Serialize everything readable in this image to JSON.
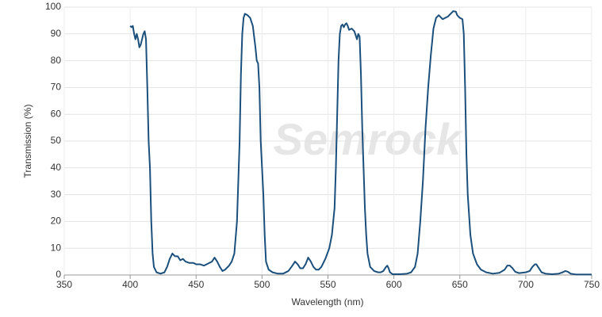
{
  "chart_data": {
    "type": "line",
    "xlabel": "Wavelength (nm)",
    "ylabel": "Transmission (%)",
    "watermark": "Semrock",
    "color": "#1b4f7c",
    "grid": true,
    "xlim": [
      350,
      750
    ],
    "xticks": [
      350,
      400,
      450,
      500,
      550,
      600,
      650,
      700,
      750
    ],
    "ylim": [
      0,
      100
    ],
    "yticks": [
      0,
      10,
      20,
      30,
      40,
      50,
      60,
      70,
      80,
      90,
      100
    ],
    "x": [
      400,
      401,
      402,
      403,
      404,
      405,
      406,
      407,
      408,
      409,
      410,
      411,
      412,
      413,
      414,
      415,
      416,
      417,
      418,
      420,
      423,
      426,
      428,
      430,
      432,
      434,
      436,
      438,
      440,
      442,
      445,
      448,
      450,
      453,
      456,
      458,
      460,
      462,
      464,
      466,
      468,
      470,
      472,
      475,
      477,
      479,
      481,
      483,
      484,
      485,
      486,
      487,
      489,
      491,
      493,
      495,
      496,
      497,
      498,
      499,
      500,
      501,
      502,
      503,
      505,
      508,
      512,
      516,
      520,
      523,
      525,
      527,
      529,
      531,
      533,
      535,
      537,
      539,
      541,
      543,
      545,
      548,
      551,
      553,
      555,
      556,
      557,
      558,
      559,
      560,
      561,
      562,
      563,
      564,
      565,
      566,
      568,
      570,
      572,
      573,
      574,
      575,
      576,
      577,
      578,
      579,
      580,
      582,
      585,
      588,
      590,
      592,
      594,
      595,
      596,
      597,
      599,
      605,
      610,
      613,
      616,
      618,
      620,
      622,
      624,
      626,
      628,
      630,
      632,
      634,
      636,
      637,
      639,
      641,
      643,
      645,
      647,
      648,
      650,
      652,
      653,
      654,
      655,
      656,
      658,
      660,
      663,
      666,
      670,
      675,
      680,
      684,
      686,
      688,
      690,
      692,
      695,
      700,
      703,
      705,
      707,
      708,
      710,
      712,
      715,
      720,
      725,
      728,
      730,
      732,
      734,
      738,
      745,
      750
    ],
    "values": [
      93,
      92.5,
      93,
      90,
      88,
      90,
      88,
      85,
      86,
      88,
      90,
      91,
      88,
      70,
      50,
      40,
      20,
      8,
      3,
      1,
      0.5,
      1,
      3,
      6,
      8,
      7,
      7,
      5.5,
      6,
      5,
      4.5,
      4.5,
      4,
      4,
      3.5,
      4,
      4.5,
      5,
      6.5,
      5,
      3,
      1.5,
      2,
      3.5,
      5,
      8,
      20,
      50,
      75,
      90,
      96,
      97.5,
      97,
      96,
      93,
      85,
      80,
      79,
      70,
      50,
      40,
      30,
      15,
      5,
      2,
      1,
      0.5,
      0.5,
      1.5,
      3.5,
      5,
      4,
      2.5,
      2.5,
      4,
      6.5,
      5,
      3,
      2,
      2,
      3,
      6,
      10,
      15,
      25,
      40,
      60,
      80,
      90,
      93,
      93.5,
      92.5,
      93.5,
      94,
      93,
      91.5,
      92,
      91,
      88,
      90,
      89,
      75,
      55,
      40,
      25,
      15,
      8,
      3,
      1.5,
      1,
      1,
      1.5,
      3,
      3.5,
      2.5,
      1,
      0.3,
      0.3,
      0.5,
      1,
      3,
      8,
      20,
      35,
      55,
      70,
      82,
      92,
      96,
      97,
      96,
      95.5,
      96,
      96.5,
      97.5,
      98.5,
      98.3,
      97,
      96,
      95.5,
      90,
      70,
      45,
      30,
      15,
      8,
      4,
      2,
      1,
      0.5,
      0.8,
      2,
      3.5,
      3.5,
      2.5,
      1.2,
      0.7,
      1,
      1.5,
      3,
      4,
      4,
      2.5,
      1,
      0.5,
      0.3,
      0.5,
      1,
      1.5,
      1.2,
      0.5,
      0.2,
      0.2,
      0.2
    ]
  }
}
